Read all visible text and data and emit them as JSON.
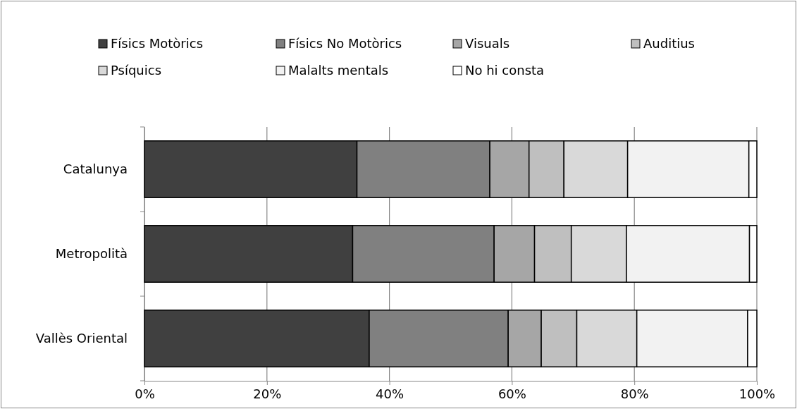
{
  "chart_data": {
    "type": "bar",
    "orientation": "horizontal",
    "stacked": true,
    "categories": [
      "Catalunya",
      "Metropolità",
      "Vallès Oriental"
    ],
    "series": [
      {
        "name": "Físics Motòrics",
        "color": "#404040",
        "values": [
          34.7,
          34.0,
          36.7
        ]
      },
      {
        "name": "Físics No Motòrics",
        "color": "#808080",
        "values": [
          21.7,
          23.1,
          22.7
        ]
      },
      {
        "name": "Visuals",
        "color": "#a6a6a6",
        "values": [
          6.4,
          6.6,
          5.4
        ]
      },
      {
        "name": "Auditius",
        "color": "#bfbfbf",
        "values": [
          5.7,
          6.0,
          5.8
        ]
      },
      {
        "name": "Psíquics",
        "color": "#d9d9d9",
        "values": [
          10.4,
          9.0,
          9.8
        ]
      },
      {
        "name": "Malalts mentals",
        "color": "#f2f2f2",
        "values": [
          19.8,
          20.1,
          18.1
        ]
      },
      {
        "name": "No hi consta",
        "color": "#ffffff",
        "values": [
          1.3,
          1.2,
          1.5
        ]
      }
    ],
    "xlim": [
      0,
      100
    ],
    "xticks": [
      {
        "value": 0,
        "label": "0%"
      },
      {
        "value": 20,
        "label": "20%"
      },
      {
        "value": 40,
        "label": "40%"
      },
      {
        "value": 60,
        "label": "60%"
      },
      {
        "value": 80,
        "label": "80%"
      },
      {
        "value": 100,
        "label": "100%"
      }
    ],
    "grid": "x",
    "legend": "top"
  }
}
